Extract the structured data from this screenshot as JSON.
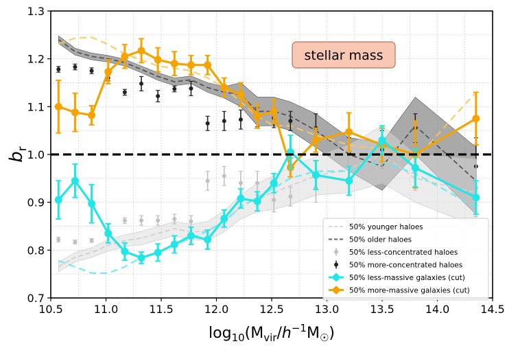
{
  "chart_data": {
    "type": "line",
    "title": "",
    "xlabel": "log10(Mvir/h^-1 M☉)",
    "ylabel": "b_r",
    "xlim": [
      10.5,
      14.5
    ],
    "ylim": [
      0.7,
      1.3
    ],
    "xticks": [
      "10.5",
      "11.0",
      "11.5",
      "12.0",
      "12.5",
      "13.0",
      "13.5",
      "14.0",
      "14.5"
    ],
    "xtick_values": [
      10.5,
      11.0,
      11.5,
      12.0,
      12.5,
      13.0,
      13.5,
      14.0,
      14.5
    ],
    "yticks": [
      "0.7",
      "0.8",
      "0.9",
      "1.0",
      "1.1",
      "1.2",
      "1.3"
    ],
    "ytick_values": [
      0.7,
      0.8,
      0.9,
      1.0,
      1.1,
      1.2,
      1.3
    ],
    "grid": true,
    "reference_line": {
      "y": 1.0,
      "style": "dashed",
      "color": "#000000"
    },
    "annotation": {
      "text": "stellar mass",
      "position": "upper-center",
      "bg_color": "#f9c8b4",
      "edge_color": "#b07060"
    },
    "xlabel_parts": {
      "base": "log",
      "sub": "10",
      "open": "(M",
      "vir": "vir",
      "slash": "/",
      "h": "h",
      "sup": "−1",
      "m": "M",
      "sun": "☉",
      "close": ")"
    },
    "ylabel_parts": {
      "base": "b",
      "sub": "r"
    },
    "legend": {
      "position": "lower-right",
      "entries": [
        {
          "label": "50% younger haloes",
          "color": "#d9d9d9",
          "style": "dashed-line"
        },
        {
          "label": "50% older haloes",
          "color": "#666666",
          "style": "dashed-line"
        },
        {
          "label": "50% less-concentrated haloes",
          "color": "#c0c0c0",
          "style": "errorbar-point"
        },
        {
          "label": "50% more-concentrated haloes",
          "color": "#222222",
          "style": "errorbar-point"
        },
        {
          "label": "50% less-massive galaxies (cut)",
          "color": "#22e5e5",
          "style": "thick-line-marker"
        },
        {
          "label": "50% more-massive galaxies (cut)",
          "color": "#f5a300",
          "style": "thick-line-marker"
        }
      ]
    },
    "series": [
      {
        "name": "50% more-massive galaxies (cut)",
        "kind": "thick-line-marker",
        "color": "#f5a300",
        "x": [
          10.57,
          10.72,
          10.87,
          11.02,
          11.17,
          11.32,
          11.47,
          11.62,
          11.77,
          11.92,
          12.07,
          12.22,
          12.37,
          12.52,
          12.67,
          12.9,
          13.2,
          13.5,
          13.8,
          14.35
        ],
        "y": [
          1.1,
          1.088,
          1.082,
          1.173,
          1.205,
          1.217,
          1.198,
          1.19,
          1.187,
          1.187,
          1.14,
          1.125,
          1.08,
          1.09,
          0.973,
          1.03,
          1.047,
          1.02,
          1.0,
          1.075
        ],
        "err": [
          0.055,
          0.04,
          0.02,
          0.025,
          0.025,
          0.025,
          0.025,
          0.025,
          0.02,
          0.02,
          0.02,
          0.025,
          0.025,
          0.025,
          0.02,
          0.025,
          0.04,
          0.035,
          0.07,
          0.055
        ]
      },
      {
        "name": "50% less-massive galaxies (cut)",
        "kind": "thick-line-marker",
        "color": "#22e5e5",
        "x": [
          10.57,
          10.72,
          10.87,
          11.02,
          11.17,
          11.32,
          11.47,
          11.62,
          11.77,
          11.92,
          12.07,
          12.22,
          12.37,
          12.52,
          12.67,
          12.9,
          13.2,
          13.5,
          13.8,
          14.35
        ],
        "y": [
          0.905,
          0.945,
          0.897,
          0.835,
          0.797,
          0.784,
          0.795,
          0.812,
          0.83,
          0.822,
          0.866,
          0.908,
          0.902,
          0.94,
          1.005,
          0.957,
          0.945,
          1.03,
          0.972,
          0.91
        ],
        "err": [
          0.04,
          0.035,
          0.04,
          0.02,
          0.018,
          0.012,
          0.018,
          0.018,
          0.018,
          0.02,
          0.018,
          0.02,
          0.02,
          0.02,
          0.035,
          0.03,
          0.03,
          0.03,
          0.04,
          0.035
        ]
      },
      {
        "name": "50% more-concentrated haloes",
        "kind": "errorbar-point",
        "color": "#222222",
        "x": [
          10.57,
          10.72,
          10.87,
          11.02,
          11.17,
          11.32,
          11.47,
          11.62,
          11.77,
          11.92,
          12.07,
          12.22,
          12.37,
          12.52,
          12.67,
          12.9,
          13.2,
          13.5,
          13.8,
          14.35
        ],
        "y": [
          1.178,
          1.183,
          1.175,
          1.16,
          1.13,
          1.148,
          1.122,
          1.137,
          1.138,
          1.065,
          1.07,
          1.073,
          1.078,
          1.076,
          1.07,
          1.055,
          1.005,
          1.01,
          1.055,
          0.975
        ],
        "err": [
          0.006,
          0.006,
          0.006,
          0.006,
          0.006,
          0.015,
          0.012,
          0.006,
          0.015,
          0.015,
          0.02,
          0.02,
          0.02,
          0.02,
          0.02,
          0.03,
          0.03,
          0.04,
          0.03,
          0.06
        ]
      },
      {
        "name": "50% less-concentrated haloes",
        "kind": "errorbar-point",
        "color": "#c0c0c0",
        "x": [
          10.57,
          10.72,
          10.87,
          11.02,
          11.17,
          11.32,
          11.47,
          11.62,
          11.77,
          11.92,
          12.07,
          12.22,
          12.37,
          12.52,
          12.67,
          12.9,
          13.2,
          13.5,
          13.8,
          14.35
        ],
        "y": [
          0.822,
          0.817,
          0.82,
          0.84,
          0.862,
          0.862,
          0.862,
          0.865,
          0.86,
          0.945,
          0.955,
          0.94,
          0.94,
          0.905,
          0.912,
          0.93,
          0.975,
          1.0,
          0.965,
          0.93
        ],
        "err": [
          0.005,
          0.004,
          0.004,
          0.006,
          0.006,
          0.01,
          0.01,
          0.01,
          0.012,
          0.02,
          0.02,
          0.025,
          0.025,
          0.025,
          0.02,
          0.03,
          0.03,
          0.03,
          0.04,
          0.06
        ]
      },
      {
        "name": "50% older haloes",
        "kind": "dashed-line-band",
        "color": "#555555",
        "band_color": "#8c8c8c",
        "x": [
          10.57,
          10.72,
          10.87,
          11.02,
          11.17,
          11.32,
          11.47,
          11.62,
          11.77,
          11.92,
          12.07,
          12.22,
          12.37,
          12.52,
          12.67,
          12.9,
          13.2,
          13.5,
          13.8,
          14.35
        ],
        "y": [
          1.24,
          1.215,
          1.205,
          1.2,
          1.192,
          1.178,
          1.163,
          1.152,
          1.156,
          1.14,
          1.13,
          1.125,
          1.09,
          1.09,
          1.08,
          1.05,
          1.0,
          0.975,
          1.06,
          0.945
        ],
        "err": [
          0.008,
          0.007,
          0.007,
          0.007,
          0.007,
          0.007,
          0.008,
          0.008,
          0.008,
          0.01,
          0.012,
          0.025,
          0.03,
          0.03,
          0.03,
          0.035,
          0.035,
          0.05,
          0.06,
          0.07
        ]
      },
      {
        "name": "50% younger haloes",
        "kind": "dashed-line-band",
        "color": "#d0d0d0",
        "band_color": "#d9d9d9",
        "x": [
          10.57,
          10.72,
          10.87,
          11.02,
          11.17,
          11.32,
          11.47,
          11.62,
          11.77,
          11.92,
          12.07,
          12.22,
          12.37,
          12.52,
          12.67,
          12.9,
          13.2,
          13.5,
          13.8,
          14.35
        ],
        "y": [
          0.765,
          0.785,
          0.795,
          0.81,
          0.82,
          0.825,
          0.835,
          0.845,
          0.838,
          0.84,
          0.86,
          0.89,
          0.91,
          0.92,
          0.935,
          0.955,
          0.97,
          1.0,
          0.95,
          0.92
        ],
        "err": [
          0.01,
          0.01,
          0.01,
          0.012,
          0.012,
          0.014,
          0.014,
          0.015,
          0.016,
          0.02,
          0.022,
          0.025,
          0.03,
          0.035,
          0.04,
          0.04,
          0.05,
          0.06,
          0.05,
          0.07
        ]
      },
      {
        "name": "more-massive (no cut)",
        "kind": "dashed-line-light",
        "color": "#f7c860",
        "x": [
          10.57,
          10.72,
          10.87,
          11.02,
          11.17,
          11.32,
          11.47,
          11.62,
          11.77,
          11.92,
          12.07,
          12.22,
          12.37,
          12.52,
          12.67,
          12.9,
          13.2,
          13.5,
          13.8,
          14.35
        ],
        "y": [
          1.232,
          1.243,
          1.245,
          1.23,
          1.21,
          1.198,
          1.185,
          1.18,
          1.175,
          1.16,
          1.14,
          1.11,
          1.08,
          1.06,
          1.06,
          1.04,
          1.02,
          1.01,
          0.99,
          1.13
        ]
      },
      {
        "name": "less-massive (no cut)",
        "kind": "dashed-line-light",
        "color": "#66e8f0",
        "x": [
          10.57,
          10.72,
          10.87,
          11.02,
          11.17,
          11.32,
          11.47,
          11.62,
          11.77,
          11.92,
          12.07,
          12.22,
          12.37,
          12.52,
          12.67,
          12.9,
          13.2,
          13.5,
          13.8,
          14.35
        ],
        "y": [
          0.778,
          0.765,
          0.752,
          0.752,
          0.765,
          0.785,
          0.795,
          0.81,
          0.825,
          0.84,
          0.86,
          0.89,
          0.91,
          0.93,
          0.95,
          0.965,
          0.965,
          0.985,
          0.96,
          0.89
        ]
      }
    ]
  }
}
